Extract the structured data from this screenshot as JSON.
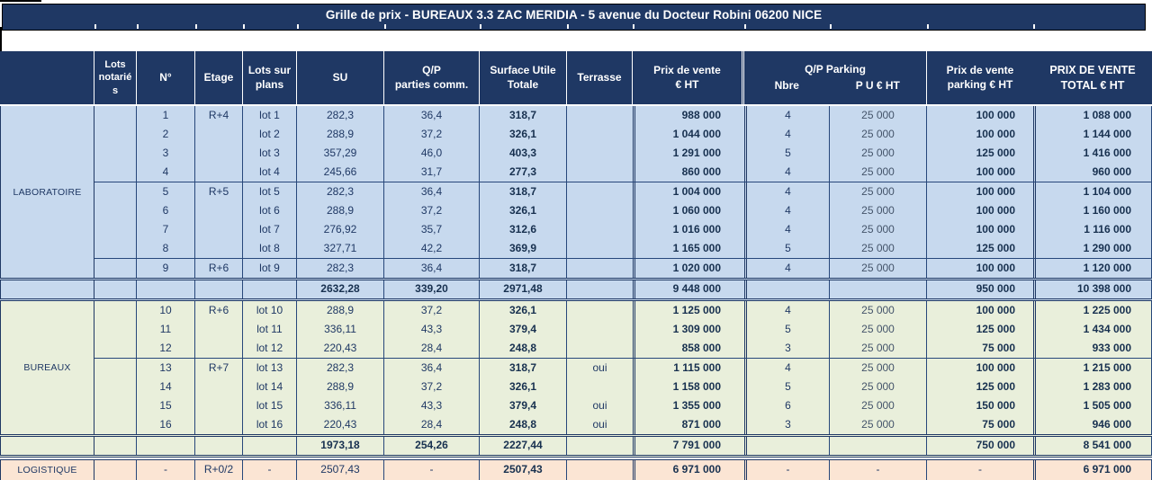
{
  "title": "Grille de prix - BUREAUX 3.3 ZAC MERIDIA - 5 avenue du Docteur Robini 06200 NICE",
  "header": {
    "category": "",
    "lots_notaries": "Lots notariés",
    "num": "N°",
    "etage": "Etage",
    "lots_plans": "Lots sur\nplans",
    "su": "SU",
    "qp": "Q/P\nparties comm.",
    "sut": "Surface Utile\nTotale",
    "terrasse": "Terrasse",
    "prix": "Prix de vente\n€ HT",
    "qp_parking": "Q/P Parking",
    "nbre": "Nbre",
    "pu": "P U € HT",
    "prix_parking": "Prix de vente\nparking € HT",
    "total": "PRIX DE VENTE\nTOTAL € HT"
  },
  "colors": {
    "navy": "#1F3864",
    "laboratoire_bg": "#C7D9EE",
    "bureaux_bg": "#E9EFDB",
    "logistique_bg": "#FBE5D4",
    "header_text": "#FFFFFF"
  },
  "sections": [
    {
      "name": "LABORATOIRE",
      "rows": [
        {
          "lots": "",
          "num": "1",
          "etage": "R+4",
          "lot": "lot 1",
          "su": "282,3",
          "qp": "36,4",
          "sut": "318,7",
          "terrasse": "",
          "prix": "988 000",
          "nbre": "4",
          "pu": "25 000",
          "parking": "100 000",
          "total": "1 088 000",
          "group_start": false
        },
        {
          "lots": "",
          "num": "2",
          "etage": "",
          "lot": "lot 2",
          "su": "288,9",
          "qp": "37,2",
          "sut": "326,1",
          "terrasse": "",
          "prix": "1 044 000",
          "nbre": "4",
          "pu": "25 000",
          "parking": "100 000",
          "total": "1 144 000",
          "group_start": false
        },
        {
          "lots": "",
          "num": "3",
          "etage": "",
          "lot": "lot 3",
          "su": "357,29",
          "qp": "46,0",
          "sut": "403,3",
          "terrasse": "",
          "prix": "1 291 000",
          "nbre": "5",
          "pu": "25 000",
          "parking": "125 000",
          "total": "1 416 000",
          "group_start": false
        },
        {
          "lots": "",
          "num": "4",
          "etage": "",
          "lot": "lot 4",
          "su": "245,66",
          "qp": "31,7",
          "sut": "277,3",
          "terrasse": "",
          "prix": "860 000",
          "nbre": "4",
          "pu": "25 000",
          "parking": "100 000",
          "total": "960 000",
          "group_start": false
        },
        {
          "lots": "",
          "num": "5",
          "etage": "R+5",
          "lot": "lot 5",
          "su": "282,3",
          "qp": "36,4",
          "sut": "318,7",
          "terrasse": "",
          "prix": "1 004 000",
          "nbre": "4",
          "pu": "25 000",
          "parking": "100 000",
          "total": "1 104 000",
          "group_start": true
        },
        {
          "lots": "",
          "num": "6",
          "etage": "",
          "lot": "lot 6",
          "su": "288,9",
          "qp": "37,2",
          "sut": "326,1",
          "terrasse": "",
          "prix": "1 060 000",
          "nbre": "4",
          "pu": "25 000",
          "parking": "100 000",
          "total": "1 160 000",
          "group_start": false
        },
        {
          "lots": "",
          "num": "7",
          "etage": "",
          "lot": "lot 7",
          "su": "276,92",
          "qp": "35,7",
          "sut": "312,6",
          "terrasse": "",
          "prix": "1 016 000",
          "nbre": "4",
          "pu": "25 000",
          "parking": "100 000",
          "total": "1 116 000",
          "group_start": false
        },
        {
          "lots": "",
          "num": "8",
          "etage": "",
          "lot": "lot 8",
          "su": "327,71",
          "qp": "42,2",
          "sut": "369,9",
          "terrasse": "",
          "prix": "1 165 000",
          "nbre": "5",
          "pu": "25 000",
          "parking": "125 000",
          "total": "1 290 000",
          "group_start": false
        },
        {
          "lots": "",
          "num": "9",
          "etage": "R+6",
          "lot": "lot 9",
          "su": "282,3",
          "qp": "36,4",
          "sut": "318,7",
          "terrasse": "",
          "prix": "1 020 000",
          "nbre": "4",
          "pu": "25 000",
          "parking": "100 000",
          "total": "1 120 000",
          "group_start": true
        }
      ],
      "subtotal": {
        "su": "2632,28",
        "qp": "339,20",
        "sut": "2971,48",
        "prix": "9 448 000",
        "parking": "950 000",
        "total": "10 398 000"
      }
    },
    {
      "name": "BUREAUX",
      "rows": [
        {
          "lots": "",
          "num": "10",
          "etage": "R+6",
          "lot": "lot 10",
          "su": "288,9",
          "qp": "37,2",
          "sut": "326,1",
          "terrasse": "",
          "prix": "1 125 000",
          "nbre": "4",
          "pu": "25 000",
          "parking": "100 000",
          "total": "1 225 000",
          "group_start": false
        },
        {
          "lots": "",
          "num": "11",
          "etage": "",
          "lot": "lot 11",
          "su": "336,11",
          "qp": "43,3",
          "sut": "379,4",
          "terrasse": "",
          "prix": "1 309 000",
          "nbre": "5",
          "pu": "25 000",
          "parking": "125 000",
          "total": "1 434 000",
          "group_start": false
        },
        {
          "lots": "",
          "num": "12",
          "etage": "",
          "lot": "lot 12",
          "su": "220,43",
          "qp": "28,4",
          "sut": "248,8",
          "terrasse": "",
          "prix": "858 000",
          "nbre": "3",
          "pu": "25 000",
          "parking": "75 000",
          "total": "933 000",
          "group_start": false
        },
        {
          "lots": "",
          "num": "13",
          "etage": "R+7",
          "lot": "lot 13",
          "su": "282,3",
          "qp": "36,4",
          "sut": "318,7",
          "terrasse": "oui",
          "prix": "1 115 000",
          "nbre": "4",
          "pu": "25 000",
          "parking": "100 000",
          "total": "1 215 000",
          "group_start": true
        },
        {
          "lots": "",
          "num": "14",
          "etage": "",
          "lot": "lot 14",
          "su": "288,9",
          "qp": "37,2",
          "sut": "326,1",
          "terrasse": "",
          "prix": "1 158 000",
          "nbre": "5",
          "pu": "25 000",
          "parking": "125 000",
          "total": "1 283 000",
          "group_start": false
        },
        {
          "lots": "",
          "num": "15",
          "etage": "",
          "lot": "lot 15",
          "su": "336,11",
          "qp": "43,3",
          "sut": "379,4",
          "terrasse": "oui",
          "prix": "1 355 000",
          "nbre": "6",
          "pu": "25 000",
          "parking": "150 000",
          "total": "1 505 000",
          "group_start": false
        },
        {
          "lots": "",
          "num": "16",
          "etage": "",
          "lot": "lot 16",
          "su": "220,43",
          "qp": "28,4",
          "sut": "248,8",
          "terrasse": "oui",
          "prix": "871 000",
          "nbre": "3",
          "pu": "25 000",
          "parking": "75 000",
          "total": "946 000",
          "group_start": false
        }
      ],
      "subtotal": {
        "su": "1973,18",
        "qp": "254,26",
        "sut": "2227,44",
        "prix": "7 791 000",
        "parking": "750 000",
        "total": "8 541 000"
      }
    },
    {
      "name": "LOGISTIQUE",
      "rows": [
        {
          "lots": "",
          "num": "-",
          "etage": "R+0/2",
          "lot": "-",
          "su": "2507,43",
          "qp": "-",
          "sut": "2507,43",
          "terrasse": "",
          "prix": "6 971 000",
          "nbre": "-",
          "pu": "-",
          "parking": "-",
          "total": "6 971 000",
          "group_start": false
        }
      ]
    }
  ]
}
